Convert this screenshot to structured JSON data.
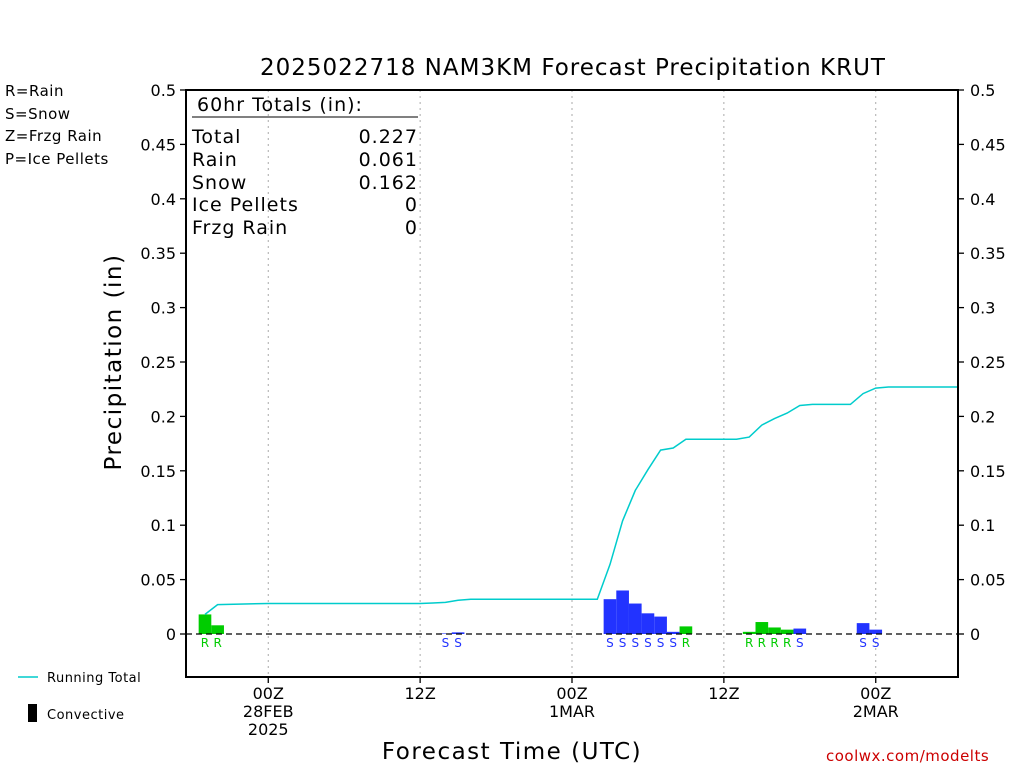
{
  "chart_data": {
    "type": "bar",
    "title": "2025022718 NAM3KM Forecast Precipitation KRUT",
    "xlabel": "Forecast Time (UTC)",
    "ylabel": "Precipitation (in)",
    "ylim": [
      0,
      0.5
    ],
    "yticks": [
      "0",
      "0.05",
      "0.1",
      "0.15",
      "0.2",
      "0.25",
      "0.3",
      "0.35",
      "0.4",
      "0.45",
      "0.5"
    ],
    "xlim_hours": [
      -6.5,
      54.5
    ],
    "x_units": "hours from 2025-02-28 00Z",
    "xticks": [
      {
        "hour": 0,
        "lines": [
          "00Z",
          "28FEB",
          "2025"
        ]
      },
      {
        "hour": 12,
        "lines": [
          "12Z"
        ]
      },
      {
        "hour": 24,
        "lines": [
          "00Z",
          "1MAR"
        ]
      },
      {
        "hour": 36,
        "lines": [
          "12Z"
        ]
      },
      {
        "hour": 48,
        "lines": [
          "00Z",
          "2MAR"
        ]
      }
    ],
    "grid": "dotted vertical at 00Z and 12Z",
    "series": [
      {
        "name": "Hourly precipitation",
        "bars": [
          {
            "hour": -5,
            "value": 0.018,
            "type": "R"
          },
          {
            "hour": -4,
            "value": 0.008,
            "type": "R"
          },
          {
            "hour": 14,
            "value": 0.0005,
            "type": "S"
          },
          {
            "hour": 15,
            "value": 0.0015,
            "type": "S"
          },
          {
            "hour": 27,
            "value": 0.032,
            "type": "S"
          },
          {
            "hour": 28,
            "value": 0.04,
            "type": "S"
          },
          {
            "hour": 29,
            "value": 0.028,
            "type": "S"
          },
          {
            "hour": 30,
            "value": 0.019,
            "type": "S"
          },
          {
            "hour": 31,
            "value": 0.016,
            "type": "S"
          },
          {
            "hour": 32,
            "value": 0.002,
            "type": "S"
          },
          {
            "hour": 33,
            "value": 0.007,
            "type": "R"
          },
          {
            "hour": 38,
            "value": 0.002,
            "type": "R"
          },
          {
            "hour": 39,
            "value": 0.011,
            "type": "R"
          },
          {
            "hour": 40,
            "value": 0.006,
            "type": "R"
          },
          {
            "hour": 41,
            "value": 0.004,
            "type": "R"
          },
          {
            "hour": 42,
            "value": 0.005,
            "type": "S"
          },
          {
            "hour": 47,
            "value": 0.01,
            "type": "S"
          },
          {
            "hour": 48,
            "value": 0.004,
            "type": "S"
          }
        ]
      },
      {
        "name": "Running Total",
        "points": [
          [
            -5,
            0.018
          ],
          [
            -4,
            0.027
          ],
          [
            0,
            0.028
          ],
          [
            12,
            0.028
          ],
          [
            13,
            0.0285
          ],
          [
            14,
            0.029
          ],
          [
            15,
            0.031
          ],
          [
            16,
            0.032
          ],
          [
            26,
            0.032
          ],
          [
            27,
            0.064
          ],
          [
            28,
            0.104
          ],
          [
            29,
            0.132
          ],
          [
            30,
            0.151
          ],
          [
            31,
            0.169
          ],
          [
            32,
            0.171
          ],
          [
            33,
            0.179
          ],
          [
            37,
            0.179
          ],
          [
            38,
            0.181
          ],
          [
            39,
            0.192
          ],
          [
            40,
            0.198
          ],
          [
            41,
            0.203
          ],
          [
            42,
            0.21
          ],
          [
            43,
            0.211
          ],
          [
            46,
            0.211
          ],
          [
            47,
            0.221
          ],
          [
            48,
            0.226
          ],
          [
            49,
            0.227
          ],
          [
            54.5,
            0.227
          ]
        ]
      }
    ],
    "colors": {
      "R": "#00cc00",
      "S": "#2233ff",
      "Z": "#ee8833",
      "P": "#ee33aa",
      "running_total": "#00cccc"
    }
  },
  "totals": {
    "header": "60hr Totals (in):",
    "rows": [
      {
        "label": "Total",
        "value": "0.227"
      },
      {
        "label": "Rain",
        "value": "0.061"
      },
      {
        "label": "Snow",
        "value": "0.162"
      },
      {
        "label": "Ice Pellets",
        "value": "0"
      },
      {
        "label": "Frzg Rain",
        "value": "0"
      }
    ]
  },
  "ptype_legend": [
    {
      "text": "R=Rain",
      "color": "#00cc00"
    },
    {
      "text": "S=Snow",
      "color": "#2233ff"
    },
    {
      "text": "Z=Frzg Rain",
      "color": "#ee8833"
    },
    {
      "text": "P=Ice Pellets",
      "color": "#ee33aa"
    }
  ],
  "bottom_legend": {
    "running_total": "Running Total",
    "convective": "Convective"
  },
  "credit": {
    "text": "coolwx.com/modelts",
    "color": "#cc0000"
  }
}
